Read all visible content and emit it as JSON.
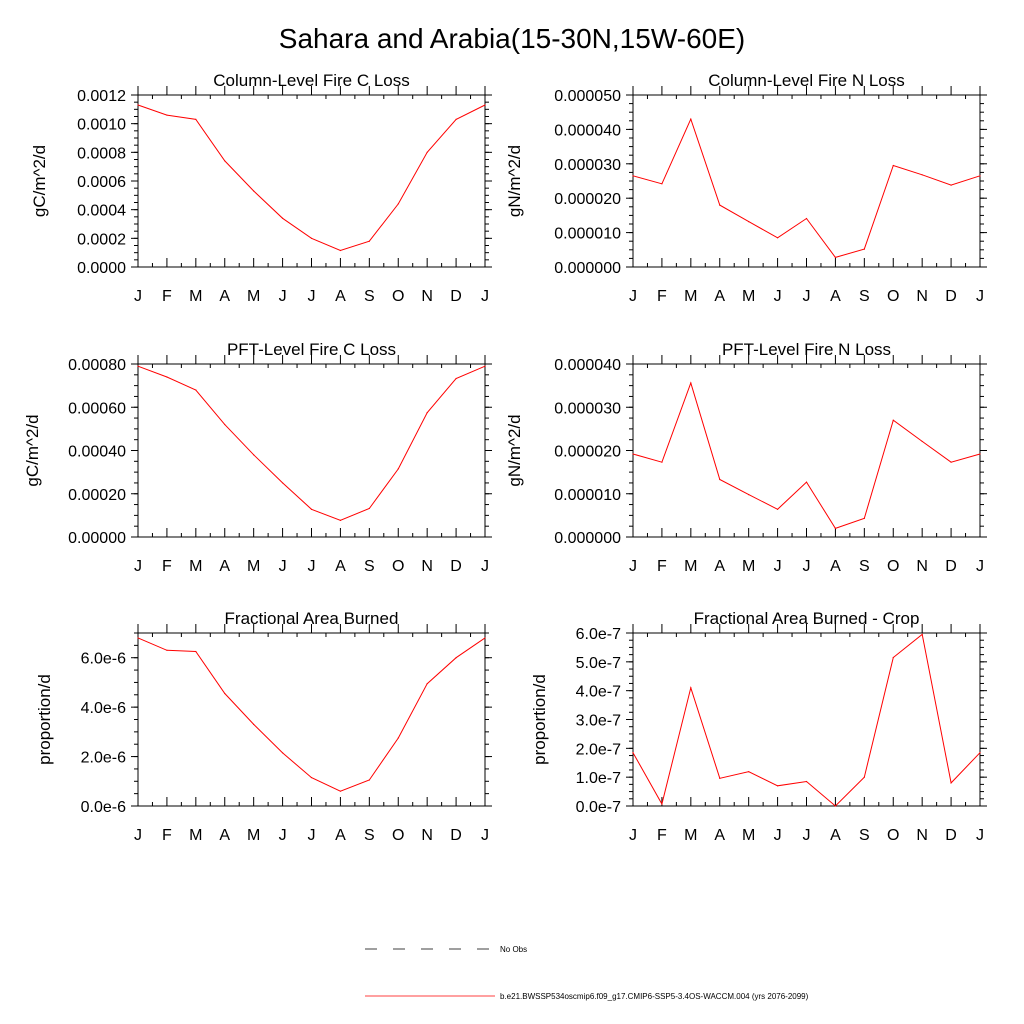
{
  "title": "Sahara and Arabia(15-30N,15W-60E)",
  "colors": {
    "model": "#ff0000",
    "obs": "#000000",
    "frame": "#000000"
  },
  "legend": {
    "obs_label": "No Obs",
    "model_label": "b.e21.BWSSP534oscmip6.f09_g17.CMIP6-SSP5-3.4OS-WACCM.004 (yrs 2076-2099)"
  },
  "chart_data": [
    {
      "type": "line",
      "title": "Column-Level Fire C Loss",
      "ylabel": "gC/m^2/d",
      "categories": [
        "J",
        "F",
        "M",
        "A",
        "M",
        "J",
        "J",
        "A",
        "S",
        "O",
        "N",
        "D",
        "J"
      ],
      "ylim": [
        0,
        0.0012
      ],
      "yticks": [
        "0.0000",
        "0.0002",
        "0.0004",
        "0.0006",
        "0.0008",
        "0.0010",
        "0.0012"
      ],
      "series": [
        {
          "values": [
            0.00113,
            0.00106,
            0.00103,
            0.00074,
            0.00053,
            0.00034,
            0.0002,
            0.000115,
            0.00018,
            0.00044,
            0.0008,
            0.00103,
            0.00113
          ]
        }
      ]
    },
    {
      "type": "line",
      "title": "Column-Level Fire N Loss",
      "ylabel": "gN/m^2/d",
      "categories": [
        "J",
        "F",
        "M",
        "A",
        "M",
        "J",
        "J",
        "A",
        "S",
        "O",
        "N",
        "D",
        "J"
      ],
      "ylim": [
        0,
        5e-05
      ],
      "yticks": [
        "0.000000",
        "0.000010",
        "0.000020",
        "0.000030",
        "0.000040",
        "0.000050"
      ],
      "series": [
        {
          "values": [
            2.65e-05,
            2.42e-05,
            4.3e-05,
            1.8e-05,
            1.32e-05,
            8.5e-06,
            1.41e-05,
            2.8e-06,
            5.2e-06,
            2.95e-05,
            2.68e-05,
            2.38e-05,
            2.65e-05
          ]
        }
      ]
    },
    {
      "type": "line",
      "title": "PFT-Level Fire C Loss",
      "ylabel": "gC/m^2/d",
      "categories": [
        "J",
        "F",
        "M",
        "A",
        "M",
        "J",
        "J",
        "A",
        "S",
        "O",
        "N",
        "D",
        "J"
      ],
      "ylim": [
        0,
        0.0008
      ],
      "yticks": [
        "0.00000",
        "0.00020",
        "0.00040",
        "0.00060",
        "0.00080"
      ],
      "series": [
        {
          "values": [
            0.00079,
            0.00074,
            0.00068,
            0.00052,
            0.00038,
            0.00025,
            0.000128,
            7.7e-05,
            0.000132,
            0.000315,
            0.000575,
            0.000733,
            0.00079
          ]
        }
      ]
    },
    {
      "type": "line",
      "title": "PFT-Level Fire N Loss",
      "ylabel": "gN/m^2/d",
      "categories": [
        "J",
        "F",
        "M",
        "A",
        "M",
        "J",
        "J",
        "A",
        "S",
        "O",
        "N",
        "D",
        "J"
      ],
      "ylim": [
        0,
        4e-05
      ],
      "yticks": [
        "0.000000",
        "0.000010",
        "0.000020",
        "0.000030",
        "0.000040"
      ],
      "series": [
        {
          "values": [
            1.92e-05,
            1.73e-05,
            3.56e-05,
            1.33e-05,
            9.8e-06,
            6.4e-06,
            1.27e-05,
            2e-06,
            4.3e-06,
            2.7e-05,
            2.21e-05,
            1.73e-05,
            1.92e-05
          ]
        }
      ]
    },
    {
      "type": "line",
      "title": "Fractional Area Burned",
      "ylabel": "proportion/d",
      "categories": [
        "J",
        "F",
        "M",
        "A",
        "M",
        "J",
        "J",
        "A",
        "S",
        "O",
        "N",
        "D",
        "J"
      ],
      "ylim": [
        0,
        7e-06
      ],
      "yticks": [
        "0.0e-6",
        "2.0e-6",
        "4.0e-6",
        "6.0e-6"
      ],
      "ytick_values": [
        0,
        2e-06,
        4e-06,
        6e-06
      ],
      "series": [
        {
          "values": [
            6.8e-06,
            6.3e-06,
            6.25e-06,
            4.55e-06,
            3.3e-06,
            2.15e-06,
            1.15e-06,
            6e-07,
            1.05e-06,
            2.75e-06,
            4.95e-06,
            6e-06,
            6.8e-06
          ]
        }
      ]
    },
    {
      "type": "line",
      "title": "Fractional Area Burned - Crop",
      "ylabel": "proportion/d",
      "categories": [
        "J",
        "F",
        "M",
        "A",
        "M",
        "J",
        "J",
        "A",
        "S",
        "O",
        "N",
        "D",
        "J"
      ],
      "ylim": [
        0,
        6e-07
      ],
      "yticks": [
        "0.0e-7",
        "1.0e-7",
        "2.0e-7",
        "3.0e-7",
        "4.0e-7",
        "5.0e-7",
        "6.0e-7"
      ],
      "series": [
        {
          "values": [
            1.85e-07,
            7e-09,
            4.1e-07,
            9.6e-08,
            1.19e-07,
            7e-08,
            8.5e-08,
            0,
            1e-07,
            5.15e-07,
            5.95e-07,
            8e-08,
            1.85e-07
          ]
        }
      ]
    }
  ]
}
